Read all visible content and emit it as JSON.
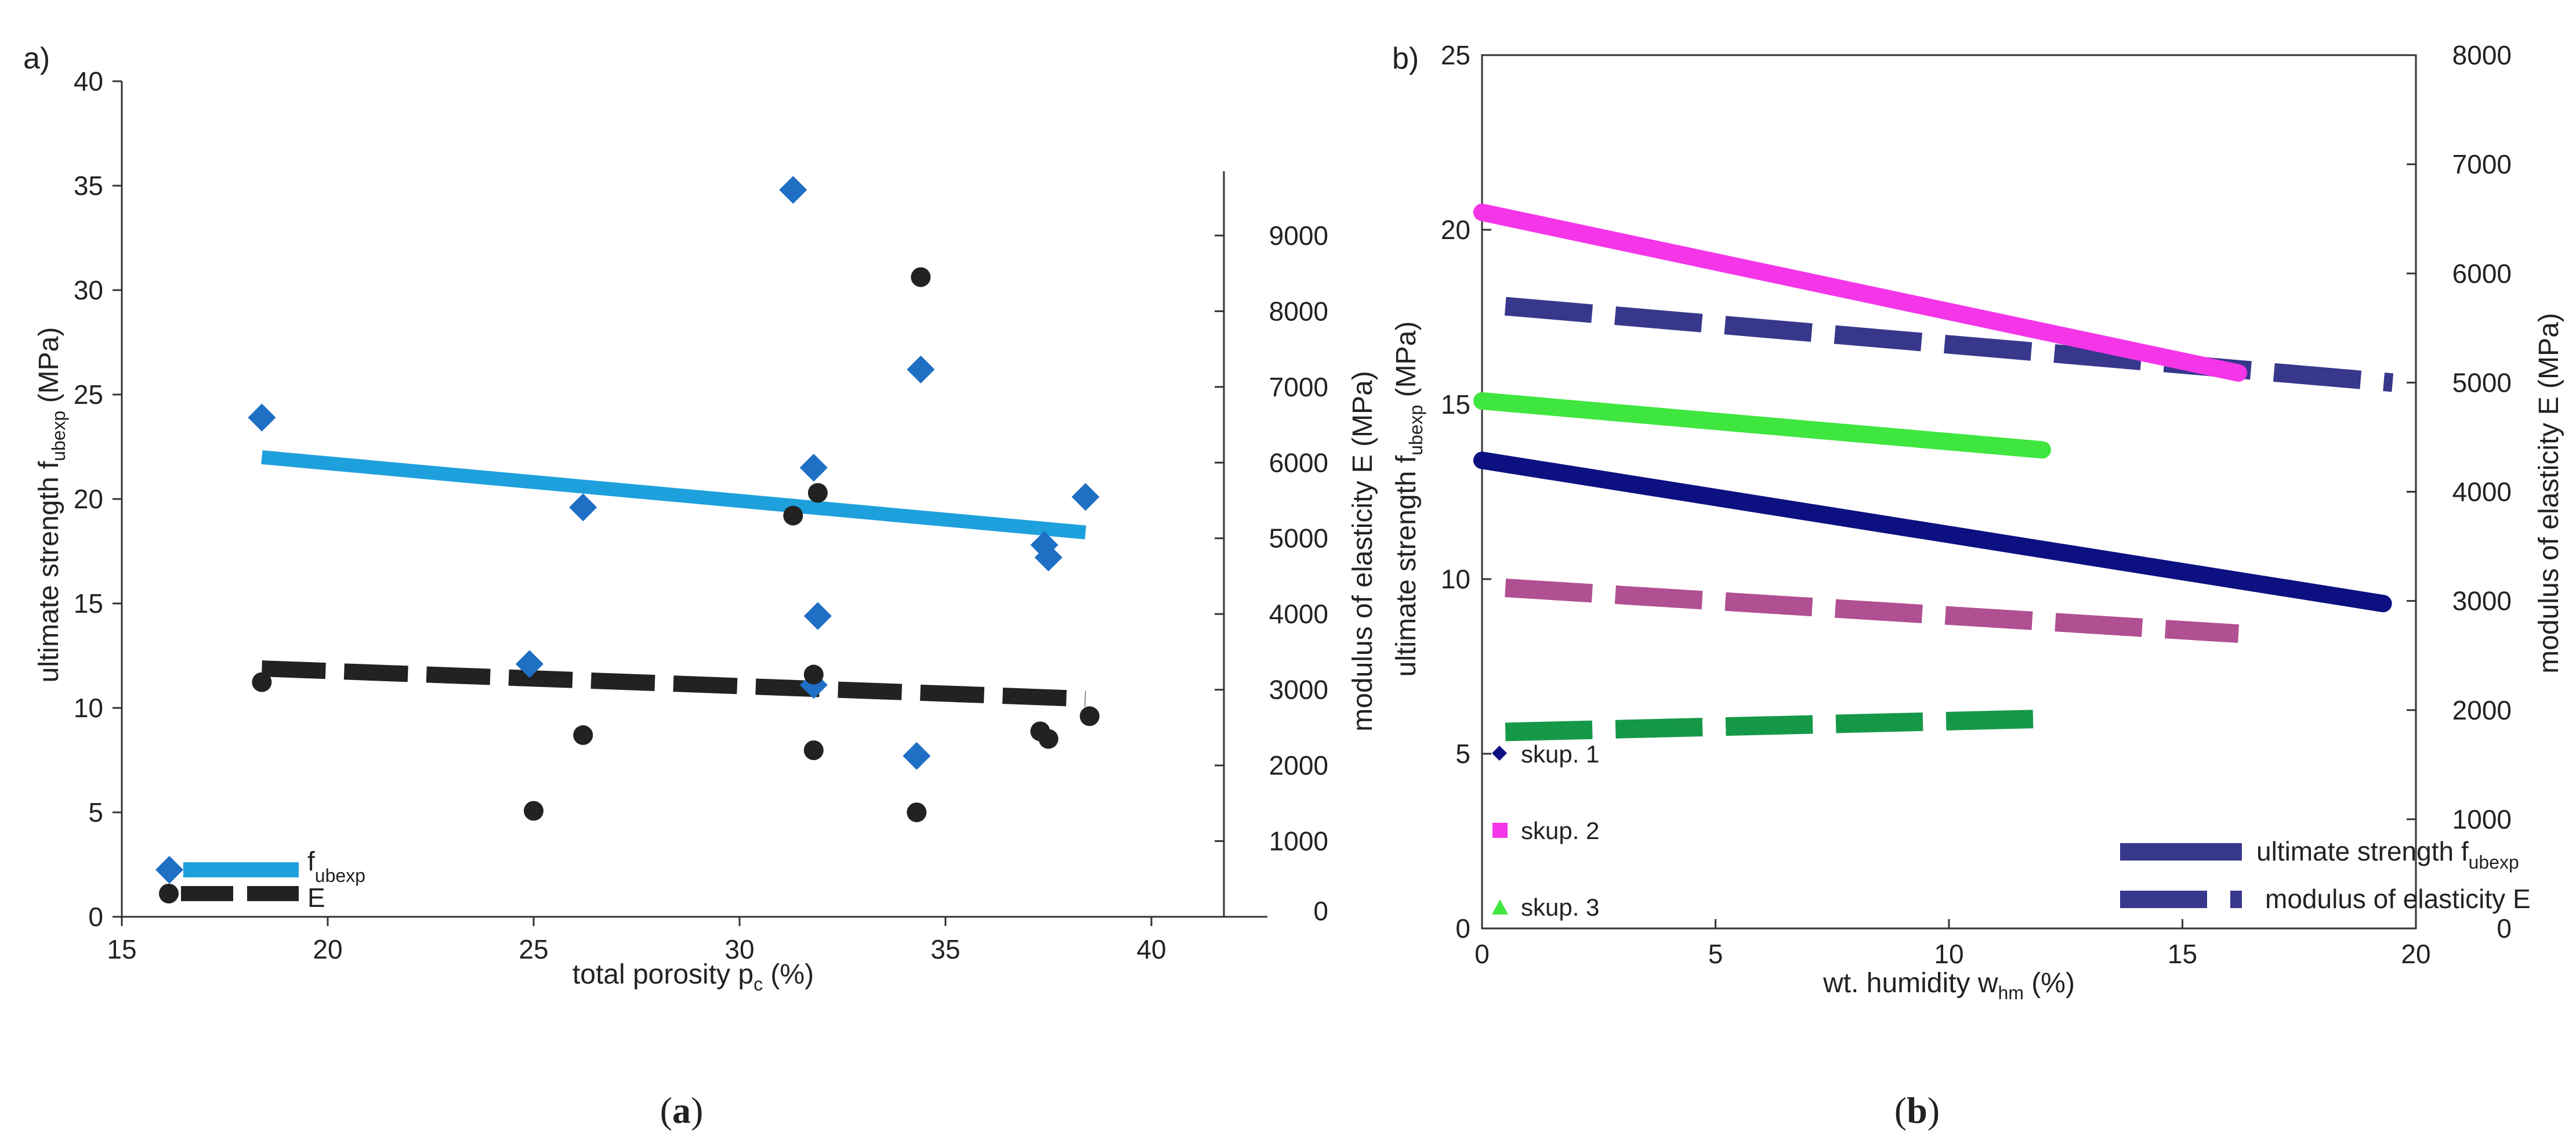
{
  "panels": [
    {
      "letter": "a)",
      "caption": "(a)",
      "caption_letter": "a",
      "chart_data": {
        "type": "scatter",
        "x_axis": {
          "label": "total porosity p",
          "label_sub": "c",
          "label_suffix": " (%)",
          "range": [
            15,
            40
          ],
          "ticks": [
            15,
            20,
            25,
            30,
            35,
            40
          ]
        },
        "y_left": {
          "label": "ultimate strength f",
          "label_sub": "ubexp",
          "label_suffix": " (MPa)",
          "range": [
            0,
            40
          ],
          "ticks": [
            0,
            5,
            10,
            15,
            20,
            25,
            30,
            35,
            40
          ]
        },
        "y_right": {
          "label": "modulus of elasticity E (MPa)",
          "range": [
            0,
            9850
          ],
          "ticks": [
            0,
            1000,
            2000,
            3000,
            4000,
            5000,
            6000,
            7000,
            8000,
            9000
          ]
        },
        "series": [
          {
            "name": "f",
            "name_sub": "ubexp",
            "axis": "left",
            "marker": "diamond",
            "color": "#1f6fc4",
            "points": [
              [
                18.4,
                23.9
              ],
              [
                24.9,
                12.1
              ],
              [
                26.2,
                19.6
              ],
              [
                31.3,
                34.8
              ],
              [
                31.8,
                21.5
              ],
              [
                31.8,
                11.1
              ],
              [
                31.9,
                14.4
              ],
              [
                34.4,
                26.2
              ],
              [
                34.3,
                7.7
              ],
              [
                37.4,
                17.8
              ],
              [
                37.5,
                17.2
              ],
              [
                38.4,
                20.1
              ]
            ],
            "trend": {
              "color": "#1ea0dc",
              "style": "solid",
              "x": [
                18.4,
                38.4
              ],
              "y": [
                22.0,
                18.4
              ]
            }
          },
          {
            "name": "E",
            "axis": "right",
            "marker": "circle",
            "color": "#222222",
            "points": [
              [
                18.4,
                3100
              ],
              [
                25.0,
                1400
              ],
              [
                26.2,
                2400
              ],
              [
                31.3,
                5300
              ],
              [
                31.8,
                3200
              ],
              [
                31.9,
                5600
              ],
              [
                31.8,
                2200
              ],
              [
                34.4,
                8450
              ],
              [
                34.3,
                1380
              ],
              [
                37.3,
                2450
              ],
              [
                37.5,
                2350
              ],
              [
                38.5,
                2650
              ]
            ],
            "trend": {
              "color": "#222222",
              "style": "dashed",
              "x": [
                18.4,
                38.4
              ],
              "y": [
                3280,
                2880
              ]
            }
          }
        ]
      }
    },
    {
      "letter": "b)",
      "caption": "(b)",
      "caption_letter": "b",
      "chart_data": {
        "type": "line",
        "x_axis": {
          "label": "wt. humidity w",
          "label_sub": "hm",
          "label_suffix": " (%)",
          "range": [
            0,
            20
          ],
          "ticks": [
            0,
            5,
            10,
            15,
            20
          ]
        },
        "y_left": {
          "label": "ultimate strength f",
          "label_sub": "ubexp",
          "label_suffix": " (MPa)",
          "range": [
            0,
            25
          ],
          "ticks": [
            0,
            5,
            10,
            15,
            20,
            25
          ]
        },
        "y_right": {
          "label": "modulus of elasticity E (MPa)",
          "range": [
            0,
            8000
          ],
          "ticks": [
            0,
            1000,
            2000,
            3000,
            4000,
            5000,
            6000,
            7000,
            8000
          ]
        },
        "series": [
          {
            "name": "skup. 1",
            "group": 1,
            "marker": "diamond",
            "strength": {
              "color": "#0d1080",
              "x": [
                0,
                19.3
              ],
              "y": [
                13.4,
                9.3
              ]
            },
            "modulus": {
              "color": "#37378c",
              "x": [
                0.5,
                19.5
              ],
              "y": [
                5700,
                5000
              ]
            }
          },
          {
            "name": "skup. 2",
            "group": 2,
            "marker": "square",
            "strength": {
              "color": "#f535e8",
              "x": [
                0,
                16.2
              ],
              "y": [
                20.5,
                15.9
              ]
            },
            "modulus": {
              "color": "#b04f91",
              "x": [
                0.5,
                16.2
              ],
              "y": [
                3120,
                2700
              ]
            }
          },
          {
            "name": "skup. 3",
            "group": 3,
            "marker": "triangle",
            "strength": {
              "color": "#3fe63f",
              "x": [
                0,
                12.0
              ],
              "y": [
                15.1,
                13.7
              ]
            },
            "modulus": {
              "color": "#159948",
              "x": [
                0.5,
                12.0
              ],
              "y": [
                1800,
                1920
              ]
            }
          }
        ],
        "line_legend": [
          {
            "label": "ultimate strength f",
            "label_sub": "ubexp",
            "style": "solid",
            "color": "#37378c"
          },
          {
            "label": "modulus of elasticity E",
            "style": "dashed",
            "color": "#37378c"
          }
        ]
      }
    }
  ]
}
